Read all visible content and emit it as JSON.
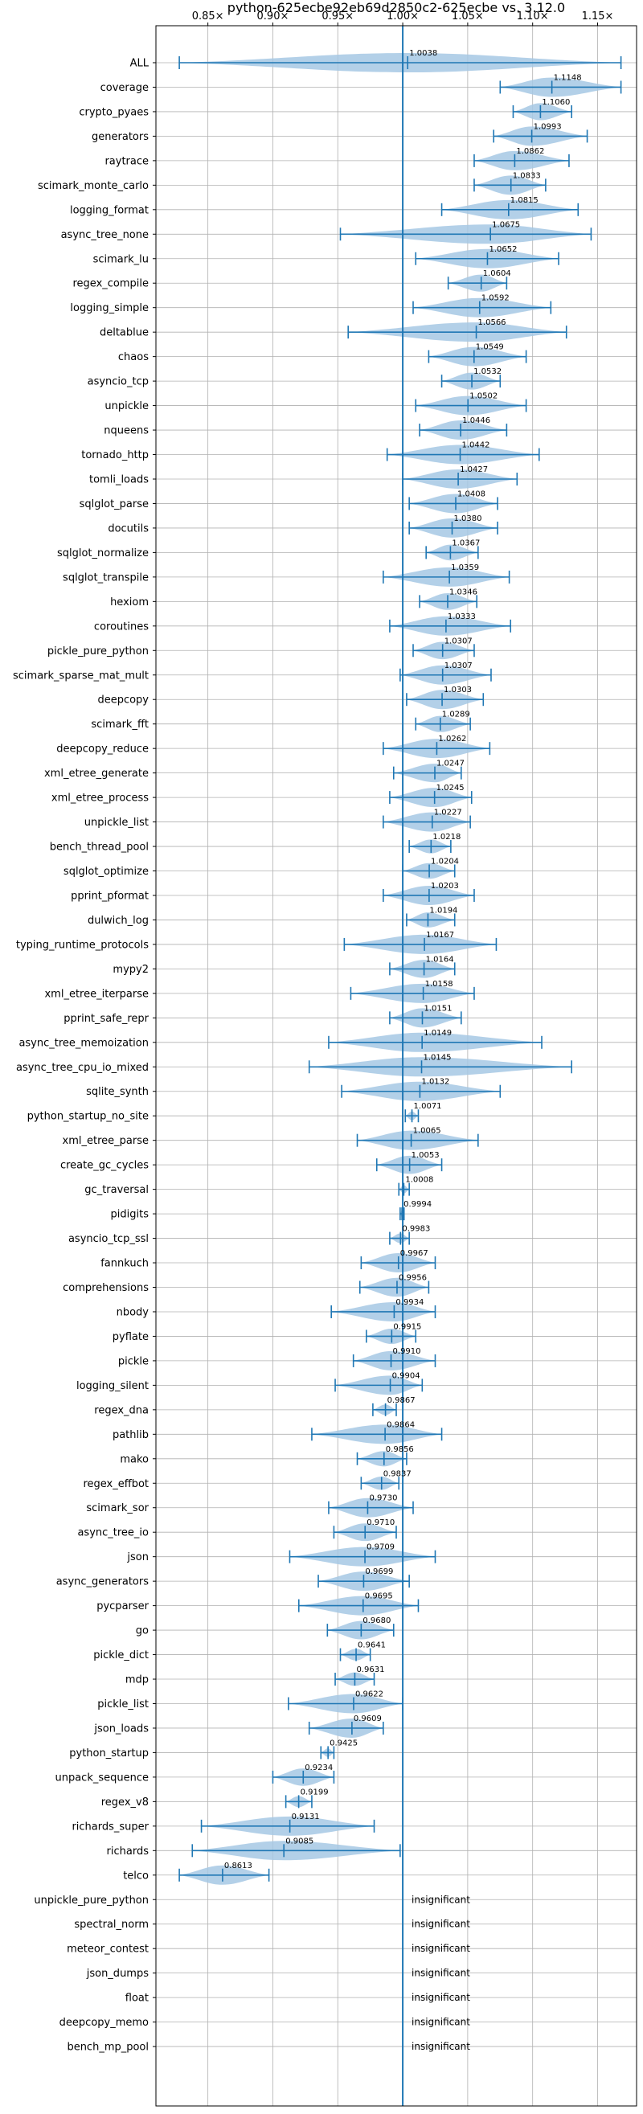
{
  "chart_data": {
    "type": "violin",
    "title": "python-625ecbe92eb69d2850c2-625ecbe vs. 3.12.0",
    "xlim": [
      0.81,
      1.18
    ],
    "x_ticks": [
      {
        "value": 0.85,
        "label": "0.85×"
      },
      {
        "value": 0.9,
        "label": "0.90×"
      },
      {
        "value": 0.95,
        "label": "0.95×"
      },
      {
        "value": 1.0,
        "label": "1.00×"
      },
      {
        "value": 1.05,
        "label": "1.05×"
      },
      {
        "value": 1.1,
        "label": "1.10×"
      },
      {
        "value": 1.15,
        "label": "1.15×"
      }
    ],
    "reference_line": 1.0,
    "grid": true,
    "insignificant_label": "insignificant",
    "benchmarks": [
      {
        "name": "ALL",
        "value": 1.0038,
        "min": 0.828,
        "max": 1.168
      },
      {
        "name": "coverage",
        "value": 1.1148,
        "min": 1.075,
        "max": 1.168
      },
      {
        "name": "crypto_pyaes",
        "value": 1.106,
        "min": 1.085,
        "max": 1.13
      },
      {
        "name": "generators",
        "value": 1.0993,
        "min": 1.07,
        "max": 1.142
      },
      {
        "name": "raytrace",
        "value": 1.0862,
        "min": 1.055,
        "max": 1.128
      },
      {
        "name": "scimark_monte_carlo",
        "value": 1.0833,
        "min": 1.055,
        "max": 1.11
      },
      {
        "name": "logging_format",
        "value": 1.0815,
        "min": 1.03,
        "max": 1.135
      },
      {
        "name": "async_tree_none",
        "value": 1.0675,
        "min": 0.952,
        "max": 1.145
      },
      {
        "name": "scimark_lu",
        "value": 1.0652,
        "min": 1.01,
        "max": 1.12
      },
      {
        "name": "regex_compile",
        "value": 1.0604,
        "min": 1.035,
        "max": 1.08
      },
      {
        "name": "logging_simple",
        "value": 1.0592,
        "min": 1.008,
        "max": 1.114
      },
      {
        "name": "deltablue",
        "value": 1.0566,
        "min": 0.958,
        "max": 1.126
      },
      {
        "name": "chaos",
        "value": 1.0549,
        "min": 1.02,
        "max": 1.095
      },
      {
        "name": "asyncio_tcp",
        "value": 1.0532,
        "min": 1.03,
        "max": 1.075
      },
      {
        "name": "unpickle",
        "value": 1.0502,
        "min": 1.01,
        "max": 1.095
      },
      {
        "name": "nqueens",
        "value": 1.0446,
        "min": 1.013,
        "max": 1.08
      },
      {
        "name": "tornado_http",
        "value": 1.0442,
        "min": 0.988,
        "max": 1.105
      },
      {
        "name": "tomli_loads",
        "value": 1.0427,
        "min": 1.0,
        "max": 1.088
      },
      {
        "name": "sqlglot_parse",
        "value": 1.0408,
        "min": 1.005,
        "max": 1.073
      },
      {
        "name": "docutils",
        "value": 1.038,
        "min": 1.005,
        "max": 1.073
      },
      {
        "name": "sqlglot_normalize",
        "value": 1.0367,
        "min": 1.018,
        "max": 1.058
      },
      {
        "name": "sqlglot_transpile",
        "value": 1.0359,
        "min": 0.985,
        "max": 1.082
      },
      {
        "name": "hexiom",
        "value": 1.0346,
        "min": 1.013,
        "max": 1.057
      },
      {
        "name": "coroutines",
        "value": 1.0333,
        "min": 0.99,
        "max": 1.083
      },
      {
        "name": "pickle_pure_python",
        "value": 1.0307,
        "min": 1.008,
        "max": 1.055
      },
      {
        "name": "scimark_sparse_mat_mult",
        "value": 1.0307,
        "min": 0.998,
        "max": 1.068
      },
      {
        "name": "deepcopy",
        "value": 1.0303,
        "min": 1.003,
        "max": 1.062
      },
      {
        "name": "scimark_fft",
        "value": 1.0289,
        "min": 1.01,
        "max": 1.052
      },
      {
        "name": "deepcopy_reduce",
        "value": 1.0262,
        "min": 0.985,
        "max": 1.067
      },
      {
        "name": "xml_etree_generate",
        "value": 1.0247,
        "min": 0.993,
        "max": 1.045
      },
      {
        "name": "xml_etree_process",
        "value": 1.0245,
        "min": 0.99,
        "max": 1.053
      },
      {
        "name": "unpickle_list",
        "value": 1.0227,
        "min": 0.985,
        "max": 1.052
      },
      {
        "name": "bench_thread_pool",
        "value": 1.0218,
        "min": 1.005,
        "max": 1.037
      },
      {
        "name": "sqlglot_optimize",
        "value": 1.0204,
        "min": 1.0,
        "max": 1.04
      },
      {
        "name": "pprint_pformat",
        "value": 1.0203,
        "min": 0.985,
        "max": 1.055
      },
      {
        "name": "dulwich_log",
        "value": 1.0194,
        "min": 1.003,
        "max": 1.04
      },
      {
        "name": "typing_runtime_protocols",
        "value": 1.0167,
        "min": 0.955,
        "max": 1.072
      },
      {
        "name": "mypy2",
        "value": 1.0164,
        "min": 0.99,
        "max": 1.04
      },
      {
        "name": "xml_etree_iterparse",
        "value": 1.0158,
        "min": 0.96,
        "max": 1.055
      },
      {
        "name": "pprint_safe_repr",
        "value": 1.0151,
        "min": 0.99,
        "max": 1.045
      },
      {
        "name": "async_tree_memoization",
        "value": 1.0149,
        "min": 0.943,
        "max": 1.107
      },
      {
        "name": "async_tree_cpu_io_mixed",
        "value": 1.0145,
        "min": 0.928,
        "max": 1.13
      },
      {
        "name": "sqlite_synth",
        "value": 1.0132,
        "min": 0.953,
        "max": 1.075
      },
      {
        "name": "python_startup_no_site",
        "value": 1.0071,
        "min": 1.002,
        "max": 1.012
      },
      {
        "name": "xml_etree_parse",
        "value": 1.0065,
        "min": 0.965,
        "max": 1.058
      },
      {
        "name": "create_gc_cycles",
        "value": 1.0053,
        "min": 0.98,
        "max": 1.03
      },
      {
        "name": "gc_traversal",
        "value": 1.0008,
        "min": 0.997,
        "max": 1.005
      },
      {
        "name": "pidigits",
        "value": 0.9994,
        "min": 0.998,
        "max": 1.001
      },
      {
        "name": "asyncio_tcp_ssl",
        "value": 0.9983,
        "min": 0.99,
        "max": 1.005
      },
      {
        "name": "fannkuch",
        "value": 0.9967,
        "min": 0.968,
        "max": 1.025
      },
      {
        "name": "comprehensions",
        "value": 0.9956,
        "min": 0.967,
        "max": 1.02
      },
      {
        "name": "nbody",
        "value": 0.9934,
        "min": 0.945,
        "max": 1.025
      },
      {
        "name": "pyflate",
        "value": 0.9915,
        "min": 0.972,
        "max": 1.01
      },
      {
        "name": "pickle",
        "value": 0.991,
        "min": 0.962,
        "max": 1.025
      },
      {
        "name": "logging_silent",
        "value": 0.9904,
        "min": 0.948,
        "max": 1.015
      },
      {
        "name": "regex_dna",
        "value": 0.9867,
        "min": 0.977,
        "max": 0.995
      },
      {
        "name": "pathlib",
        "value": 0.9864,
        "min": 0.93,
        "max": 1.03
      },
      {
        "name": "mako",
        "value": 0.9856,
        "min": 0.965,
        "max": 1.003
      },
      {
        "name": "regex_effbot",
        "value": 0.9837,
        "min": 0.968,
        "max": 0.997
      },
      {
        "name": "scimark_sor",
        "value": 0.973,
        "min": 0.943,
        "max": 1.008
      },
      {
        "name": "async_tree_io",
        "value": 0.971,
        "min": 0.947,
        "max": 0.995
      },
      {
        "name": "json",
        "value": 0.9709,
        "min": 0.913,
        "max": 1.025
      },
      {
        "name": "async_generators",
        "value": 0.9699,
        "min": 0.935,
        "max": 1.005
      },
      {
        "name": "pycparser",
        "value": 0.9695,
        "min": 0.92,
        "max": 1.012
      },
      {
        "name": "go",
        "value": 0.968,
        "min": 0.942,
        "max": 0.993
      },
      {
        "name": "pickle_dict",
        "value": 0.9641,
        "min": 0.952,
        "max": 0.975
      },
      {
        "name": "mdp",
        "value": 0.9631,
        "min": 0.948,
        "max": 0.978
      },
      {
        "name": "pickle_list",
        "value": 0.9622,
        "min": 0.912,
        "max": 1.0
      },
      {
        "name": "json_loads",
        "value": 0.9609,
        "min": 0.928,
        "max": 0.985
      },
      {
        "name": "python_startup",
        "value": 0.9425,
        "min": 0.937,
        "max": 0.947
      },
      {
        "name": "unpack_sequence",
        "value": 0.9234,
        "min": 0.9,
        "max": 0.947
      },
      {
        "name": "regex_v8",
        "value": 0.9199,
        "min": 0.91,
        "max": 0.93
      },
      {
        "name": "richards_super",
        "value": 0.9131,
        "min": 0.845,
        "max": 0.978
      },
      {
        "name": "richards",
        "value": 0.9085,
        "min": 0.838,
        "max": 0.998
      },
      {
        "name": "telco",
        "value": 0.8613,
        "min": 0.828,
        "max": 0.897
      },
      {
        "name": "unpickle_pure_python",
        "value": null
      },
      {
        "name": "spectral_norm",
        "value": null
      },
      {
        "name": "meteor_contest",
        "value": null
      },
      {
        "name": "json_dumps",
        "value": null
      },
      {
        "name": "float",
        "value": null
      },
      {
        "name": "deepcopy_memo",
        "value": null
      },
      {
        "name": "bench_mp_pool",
        "value": null
      }
    ]
  }
}
